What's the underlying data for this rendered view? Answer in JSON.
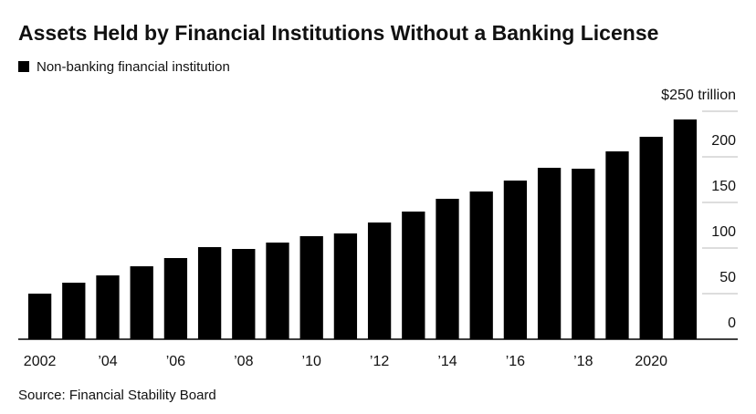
{
  "chart_data": {
    "type": "bar",
    "title": "Assets Held by Financial Institutions Without a Banking License",
    "source": "Source: Financial Stability Board",
    "categories": [
      "2002",
      null,
      "’04",
      null,
      "’06",
      null,
      "’08",
      null,
      "’10",
      null,
      "’12",
      null,
      "’14",
      null,
      "’16",
      null,
      "’18",
      null,
      "2020",
      null
    ],
    "series": [
      {
        "name": "Non-banking financial institution",
        "color": "#000000",
        "values": [
          50,
          62,
          70,
          80,
          89,
          101,
          99,
          106,
          113,
          116,
          128,
          140,
          154,
          162,
          174,
          188,
          187,
          206,
          222,
          241
        ]
      }
    ],
    "ylim": [
      0,
      250
    ],
    "yticks": [
      0,
      50,
      100,
      150,
      200,
      {
        "value": 250,
        "label": "$250 trillion"
      }
    ]
  }
}
